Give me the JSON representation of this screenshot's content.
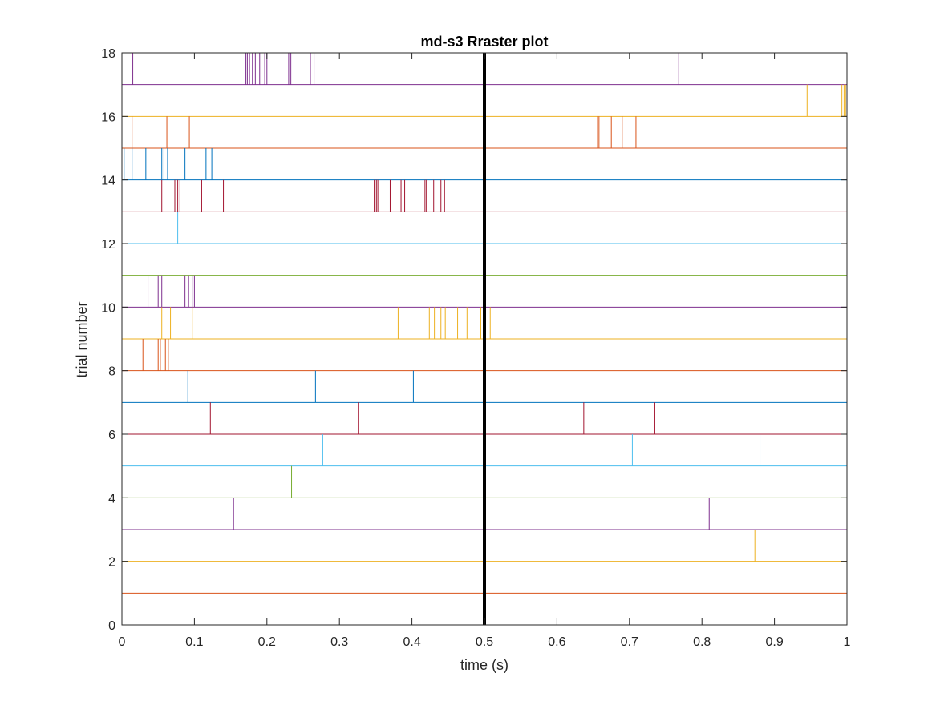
{
  "chart_data": {
    "type": "raster",
    "title": "md-s3 Rraster plot",
    "xlabel": "time (s)",
    "ylabel": "trial number",
    "xlim": [
      0,
      1
    ],
    "ylim": [
      0,
      18
    ],
    "xticks": [
      "0",
      "0.1",
      "0.2",
      "0.3",
      "0.4",
      "0.5",
      "0.6",
      "0.7",
      "0.8",
      "0.9",
      "1"
    ],
    "yticks": [
      "0",
      "2",
      "4",
      "6",
      "8",
      "10",
      "12",
      "14",
      "16",
      "18"
    ],
    "grid": false,
    "event_marker": {
      "x": 0.5,
      "color": "#000000"
    },
    "trials": [
      {
        "trial": 1,
        "color": "#0072BD",
        "spikes": []
      },
      {
        "trial": 2,
        "color": "#D95319",
        "spikes": []
      },
      {
        "trial": 3,
        "color": "#EDB120",
        "spikes": [
          0.873
        ]
      },
      {
        "trial": 4,
        "color": "#7E2F8E",
        "spikes": [
          0.154,
          0.81
        ]
      },
      {
        "trial": 5,
        "color": "#77AC30",
        "spikes": [
          0.234
        ]
      },
      {
        "trial": 6,
        "color": "#4DBEEE",
        "spikes": [
          0.277,
          0.704,
          0.88
        ]
      },
      {
        "trial": 7,
        "color": "#A2142F",
        "spikes": [
          0.122,
          0.326,
          0.637,
          0.735
        ]
      },
      {
        "trial": 8,
        "color": "#0072BD",
        "spikes": [
          0.091,
          0.267,
          0.402
        ]
      },
      {
        "trial": 9,
        "color": "#D95319",
        "spikes": [
          0.029,
          0.05,
          0.053,
          0.06,
          0.064
        ]
      },
      {
        "trial": 10,
        "color": "#EDB120",
        "spikes": [
          0.047,
          0.055,
          0.067,
          0.097,
          0.381,
          0.424,
          0.431,
          0.44,
          0.446,
          0.463,
          0.476,
          0.495,
          0.5,
          0.508
        ]
      },
      {
        "trial": 11,
        "color": "#7E2F8E",
        "spikes": [
          0.036,
          0.05,
          0.055,
          0.087,
          0.092,
          0.097,
          0.1
        ]
      },
      {
        "trial": 12,
        "color": "#77AC30",
        "spikes": []
      },
      {
        "trial": 13,
        "color": "#4DBEEE",
        "spikes": [
          0.077
        ]
      },
      {
        "trial": 14,
        "color": "#A2142F",
        "spikes": [
          0.055,
          0.073,
          0.077,
          0.08,
          0.11,
          0.14,
          0.348,
          0.351,
          0.353,
          0.37,
          0.385,
          0.39,
          0.418,
          0.42,
          0.43,
          0.44,
          0.445
        ]
      },
      {
        "trial": 15,
        "color": "#0072BD",
        "spikes": [
          0.003,
          0.014,
          0.033,
          0.055,
          0.058,
          0.063,
          0.087,
          0.116,
          0.124
        ]
      },
      {
        "trial": 16,
        "color": "#D95319",
        "spikes": [
          0.014,
          0.062,
          0.093,
          0.656,
          0.658,
          0.675,
          0.69,
          0.709
        ]
      },
      {
        "trial": 17,
        "color": "#EDB120",
        "spikes": [
          0.945,
          0.993,
          0.996,
          0.998,
          1.0
        ]
      },
      {
        "trial": 18,
        "color": "#7E2F8E",
        "spikes": [
          0.015,
          0.171,
          0.173,
          0.176,
          0.18,
          0.184,
          0.19,
          0.197,
          0.2,
          0.203,
          0.23,
          0.233,
          0.26,
          0.265,
          0.768
        ]
      }
    ]
  }
}
